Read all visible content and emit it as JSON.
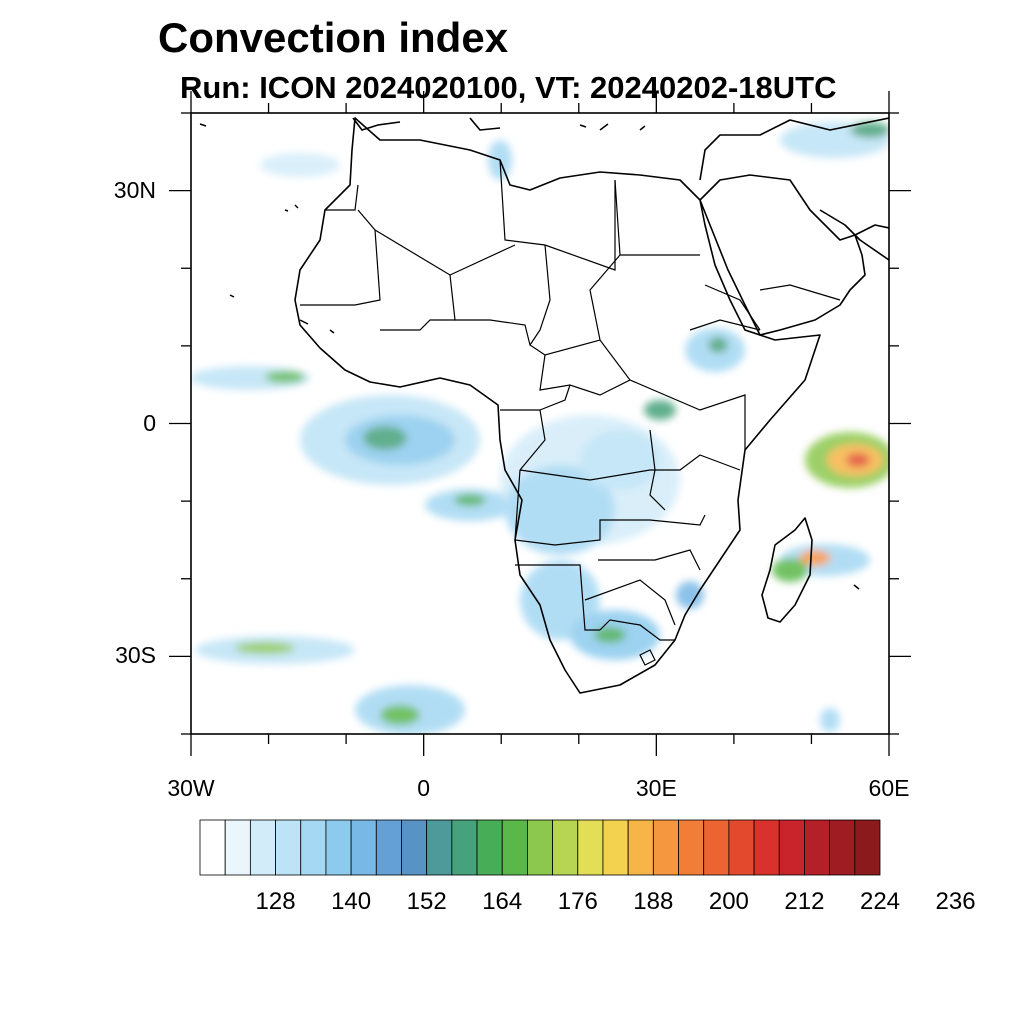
{
  "header": {
    "title": "Convection index",
    "subtitle": "Run: ICON 2024020100,  VT: 20240202-18UTC"
  },
  "map": {
    "lon_range": [
      -30,
      60
    ],
    "lat_range": [
      -40,
      40
    ],
    "lat_ticks": [
      {
        "value": 30,
        "label": "30N"
      },
      {
        "value": 0,
        "label": "0"
      },
      {
        "value": -30,
        "label": "30S"
      }
    ],
    "lon_ticks": [
      {
        "value": -30,
        "label": "30W"
      },
      {
        "value": 0,
        "label": "0"
      },
      {
        "value": 30,
        "label": "30E"
      },
      {
        "value": 60,
        "label": "60E"
      }
    ]
  },
  "colorbar": {
    "colors": [
      "#ffffff",
      "#eaf6fc",
      "#d3ecf9",
      "#bde3f6",
      "#a4d8f3",
      "#8ccbee",
      "#78b8e6",
      "#649fd6",
      "#5793c4",
      "#4e9a9a",
      "#46a27c",
      "#48ad57",
      "#5ab84a",
      "#8cc84e",
      "#b7d552",
      "#e2de56",
      "#f3d250",
      "#f7b447",
      "#f5973e",
      "#f17d36",
      "#ec6431",
      "#e2492d",
      "#d9322c",
      "#c9232b",
      "#b41f28",
      "#a01c23",
      "#8a1a1c"
    ],
    "labels": [
      "128",
      "140",
      "152",
      "164",
      "176",
      "188",
      "200",
      "212",
      "224",
      "236"
    ]
  }
}
